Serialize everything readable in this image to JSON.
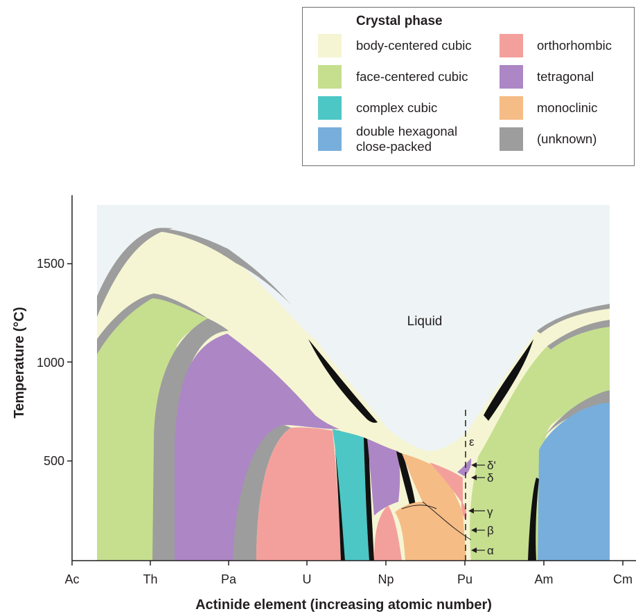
{
  "legend": {
    "title": "Crystal phase",
    "items": [
      {
        "label": "body-centered cubic",
        "color": "#f6f5d3"
      },
      {
        "label": "face-centered cubic",
        "color": "#c5df8f"
      },
      {
        "label": "complex cubic",
        "color": "#4dc6c6"
      },
      {
        "label": "double hexagonal close-packed",
        "label_line1": "double hexagonal",
        "label_line2": "close-packed",
        "color": "#78aedb"
      },
      {
        "label": "orthorhombic",
        "color": "#f3a09d"
      },
      {
        "label": "tetragonal",
        "color": "#ad86c6"
      },
      {
        "label": "monoclinic",
        "color": "#f5bc85"
      },
      {
        "label": "(unknown)",
        "color": "#9d9d9d"
      }
    ]
  },
  "colors": {
    "liquid": "#eef4f5",
    "bcc": "#f6f5d3",
    "fcc": "#c5df8f",
    "complex_cubic": "#4dc6c6",
    "dhcp": "#78aedb",
    "orthorhombic": "#f3a09d",
    "tetragonal": "#ad86c6",
    "monoclinic": "#f5bc85",
    "unknown": "#9d9d9d",
    "boundary": "#111111"
  },
  "chart_data": {
    "type": "phase-diagram",
    "xlabel": "Actinide element (increasing atomic number)",
    "ylabel": "Temperature (°C)",
    "x_categories": [
      "Ac",
      "Th",
      "Pa",
      "U",
      "Np",
      "Pu",
      "Am",
      "Cm"
    ],
    "y_ticks": [
      500,
      1000,
      1500
    ],
    "ylim": [
      0,
      1800
    ],
    "region_labels": {
      "liquid": "Liquid"
    },
    "pu_phases": [
      "ε",
      "δ'",
      "δ",
      "γ",
      "β",
      "α"
    ]
  }
}
